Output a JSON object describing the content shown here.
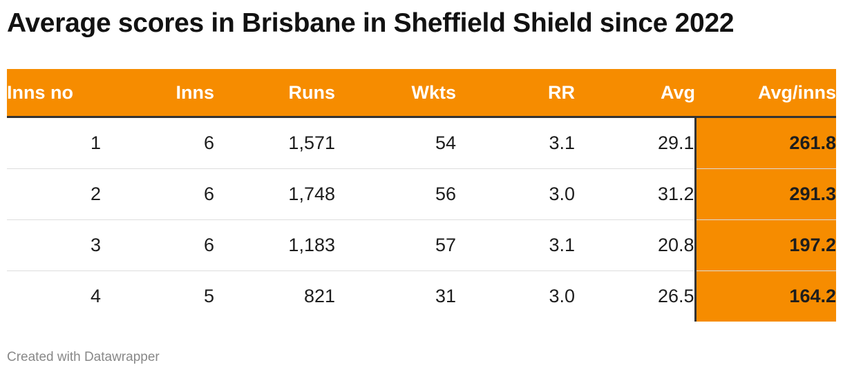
{
  "title": "Average scores in Brisbane in Sheffield Shield since 2022",
  "footer": "Created with Datawrapper",
  "colors": {
    "header_bg": "#f68c00",
    "header_text": "#ffffff",
    "highlight_bg": "#f68c00",
    "divider": "#333333"
  },
  "chart_data": {
    "type": "table",
    "title": "Average scores in Brisbane in Sheffield Shield since 2022",
    "columns": [
      "Inns no",
      "Inns",
      "Runs",
      "Wkts",
      "RR",
      "Avg",
      "Avg/inns"
    ],
    "highlighted_column": "Avg/inns",
    "rows": [
      [
        "1",
        "6",
        "1,571",
        "54",
        "3.1",
        "29.1",
        "261.8"
      ],
      [
        "2",
        "6",
        "1,748",
        "56",
        "3.0",
        "31.2",
        "291.3"
      ],
      [
        "3",
        "6",
        "1,183",
        "57",
        "3.1",
        "20.8",
        "197.2"
      ],
      [
        "4",
        "5",
        "821",
        "31",
        "3.0",
        "26.5",
        "164.2"
      ]
    ]
  }
}
